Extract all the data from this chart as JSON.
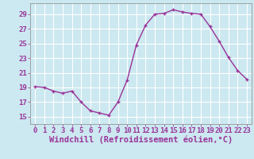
{
  "x": [
    0,
    1,
    2,
    3,
    4,
    5,
    6,
    7,
    8,
    9,
    10,
    11,
    12,
    13,
    14,
    15,
    16,
    17,
    18,
    19,
    20,
    21,
    22,
    23
  ],
  "y": [
    19.1,
    19.0,
    18.5,
    18.2,
    18.5,
    17.0,
    15.8,
    15.5,
    15.2,
    17.0,
    20.0,
    24.8,
    27.5,
    29.0,
    29.1,
    29.6,
    29.3,
    29.1,
    29.0,
    27.3,
    25.3,
    23.1,
    21.3,
    20.1
  ],
  "line_color": "#993399",
  "marker": "+",
  "marker_color": "#993399",
  "bg_color": "#cce8f0",
  "grid_color": "#ffffff",
  "xlabel": "Windchill (Refroidissement éolien,°C)",
  "xlim": [
    -0.5,
    23.5
  ],
  "ylim": [
    14.0,
    30.5
  ],
  "yticks": [
    15,
    17,
    19,
    21,
    23,
    25,
    27,
    29
  ],
  "xticks": [
    0,
    1,
    2,
    3,
    4,
    5,
    6,
    7,
    8,
    9,
    10,
    11,
    12,
    13,
    14,
    15,
    16,
    17,
    18,
    19,
    20,
    21,
    22,
    23
  ],
  "tick_label_fontsize": 6.5,
  "xlabel_fontsize": 7.5,
  "line_width": 1.0,
  "marker_size": 3.5
}
